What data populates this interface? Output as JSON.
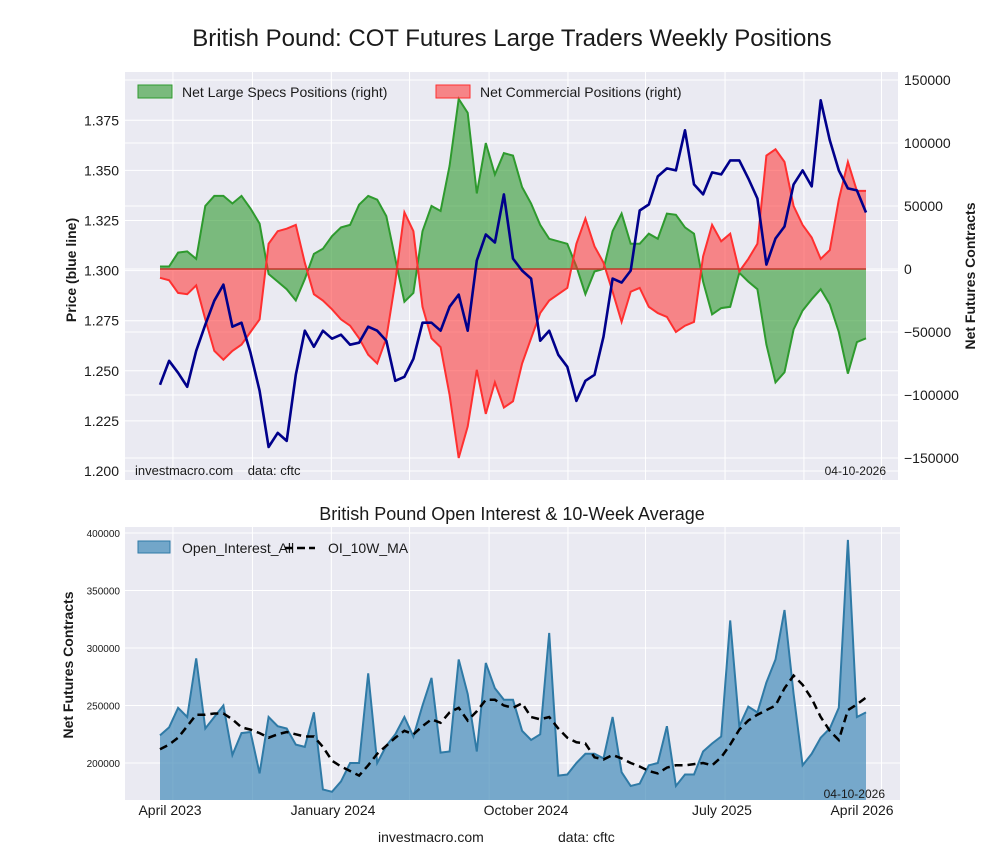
{
  "chart_data": [
    {
      "type": "line",
      "title": "British Pound: COT Futures Large Traders Weekly Positions",
      "ylabel": "Price (blue line)",
      "ylabel_right": "Net Futures Contracts",
      "ylim": [
        1.2,
        1.385
      ],
      "ylim_right": [
        -155000,
        150000
      ],
      "yticks": [
        "1.200",
        "1.225",
        "1.250",
        "1.275",
        "1.300",
        "1.325",
        "1.350",
        "1.375"
      ],
      "yticks_right": [
        "150000",
        "100000",
        "50000",
        "0",
        "−50000",
        "−100000",
        "−150000"
      ],
      "grid": true,
      "legend_placement": "top-left",
      "watermark": "investmacro.com    data: cftc",
      "date_stamp": "04-10-2026",
      "x": [
        "2023-04-11",
        "2023-04-25",
        "2023-05-09",
        "2023-05-23",
        "2023-06-06",
        "2023-06-20",
        "2023-07-04",
        "2023-07-18",
        "2023-08-01",
        "2023-08-15",
        "2023-08-29",
        "2023-09-12",
        "2023-09-26",
        "2023-10-10",
        "2023-10-24",
        "2023-11-07",
        "2023-11-21",
        "2023-12-05",
        "2023-12-19",
        "2024-01-02",
        "2024-01-16",
        "2024-01-30",
        "2024-02-13",
        "2024-02-27",
        "2024-03-12",
        "2024-03-26",
        "2024-04-09",
        "2024-04-23",
        "2024-05-07",
        "2024-05-21",
        "2024-06-04",
        "2024-06-18",
        "2024-07-02",
        "2024-07-16",
        "2024-07-30",
        "2024-08-13",
        "2024-08-27",
        "2024-09-10",
        "2024-09-24",
        "2024-10-08",
        "2024-10-22",
        "2024-11-05",
        "2024-11-19",
        "2024-12-03",
        "2024-12-17",
        "2024-12-31",
        "2025-01-14",
        "2025-01-28",
        "2025-02-11",
        "2025-02-25",
        "2025-03-11",
        "2025-03-25",
        "2025-04-08",
        "2025-04-22",
        "2025-05-06",
        "2025-05-20",
        "2025-06-03",
        "2025-06-17",
        "2025-07-01",
        "2025-07-15",
        "2025-07-29",
        "2025-08-12",
        "2025-08-26",
        "2025-09-09",
        "2025-09-23",
        "2025-10-07",
        "2025-10-21",
        "2025-11-04",
        "2025-11-18",
        "2025-12-02",
        "2025-12-16",
        "2025-12-30",
        "2026-01-13",
        "2026-01-27",
        "2026-02-10",
        "2026-02-24",
        "2026-03-10",
        "2026-03-24",
        "2026-04-07"
      ],
      "series": [
        {
          "name": "Net Large Specs Positions (right)",
          "axis": "right",
          "style": "area",
          "color": "#2e9a2e",
          "values": [
            2000,
            2000,
            13000,
            14000,
            8000,
            50000,
            58000,
            58000,
            52000,
            58000,
            48000,
            36000,
            -4000,
            -10000,
            -16000,
            -25000,
            -8000,
            12000,
            16000,
            26000,
            33000,
            35000,
            51000,
            58000,
            55000,
            42000,
            8000,
            -26000,
            -19000,
            30000,
            50000,
            46000,
            82000,
            135000,
            124000,
            60000,
            100000,
            75000,
            92000,
            90000,
            65000,
            52000,
            35000,
            24000,
            22000,
            20000,
            2000,
            -20000,
            -2000,
            0,
            30000,
            44000,
            20000,
            20000,
            28000,
            24000,
            44000,
            43000,
            33000,
            28000,
            -10000,
            -36000,
            -31000,
            -30000,
            -3000,
            -10000,
            -16000,
            -60000,
            -90000,
            -82000,
            -48000,
            -33000,
            -24000,
            -16000,
            -28000,
            -50000,
            -83000,
            -58000,
            -55000
          ]
        },
        {
          "name": "Net Commercial Positions (right)",
          "axis": "right",
          "style": "area",
          "color": "#ff3030",
          "values": [
            -7000,
            -9000,
            -19000,
            -20000,
            -13000,
            -40000,
            -65000,
            -72000,
            -65000,
            -60000,
            -50000,
            -40000,
            20000,
            30000,
            32000,
            35000,
            5000,
            -20000,
            -25000,
            -32000,
            -40000,
            -45000,
            -55000,
            -68000,
            -75000,
            -55000,
            -10000,
            45000,
            30000,
            -30000,
            -55000,
            -62000,
            -100000,
            -150000,
            -125000,
            -80000,
            -115000,
            -90000,
            -110000,
            -105000,
            -75000,
            -55000,
            -35000,
            -25000,
            -20000,
            -15000,
            20000,
            40000,
            18000,
            5000,
            -18000,
            -42000,
            -18000,
            -15000,
            -30000,
            -35000,
            -38000,
            -50000,
            -45000,
            -42000,
            10000,
            35000,
            22000,
            28000,
            -2000,
            8000,
            20000,
            90000,
            95000,
            85000,
            50000,
            35000,
            25000,
            8000,
            15000,
            55000,
            85000,
            62000,
            62000
          ]
        },
        {
          "axis": "left",
          "style": "line",
          "color": "#00008b",
          "values": [
            1.243,
            1.255,
            1.249,
            1.242,
            1.26,
            1.273,
            1.285,
            1.293,
            1.272,
            1.274,
            1.259,
            1.24,
            1.212,
            1.219,
            1.215,
            1.248,
            1.27,
            1.262,
            1.27,
            1.266,
            1.268,
            1.263,
            1.264,
            1.272,
            1.27,
            1.265,
            1.245,
            1.247,
            1.256,
            1.274,
            1.274,
            1.27,
            1.282,
            1.288,
            1.27,
            1.305,
            1.318,
            1.314,
            1.338,
            1.306,
            1.3,
            1.296,
            1.265,
            1.27,
            1.258,
            1.252,
            1.235,
            1.245,
            1.248,
            1.267,
            1.296,
            1.294,
            1.3,
            1.33,
            1.333,
            1.347,
            1.351,
            1.35,
            1.37,
            1.343,
            1.338,
            1.349,
            1.348,
            1.355,
            1.355,
            1.346,
            1.336,
            1.303,
            1.316,
            1.322,
            1.343,
            1.35,
            1.342,
            1.385,
            1.365,
            1.35,
            1.341,
            1.34,
            1.329
          ]
        }
      ]
    },
    {
      "type": "area",
      "title": "British Pound Open Interest & 10-Week Average",
      "ylabel": "Net Futures Contracts",
      "ylim": [
        168000,
        405000
      ],
      "yticks": [
        "200000",
        "250000",
        "300000",
        "350000",
        "400000"
      ],
      "xticks": [
        "April 2023",
        "January 2024",
        "October 2024",
        "July 2025",
        "April 2026"
      ],
      "grid": true,
      "legend_placement": "top-left",
      "date_stamp": "04-10-2026",
      "series": [
        {
          "name": "Open_Interest_All",
          "style": "area",
          "color": "#4a8fbb",
          "values": [
            224000,
            231000,
            248000,
            240000,
            291000,
            230000,
            240000,
            250000,
            207000,
            226000,
            227000,
            191000,
            240000,
            232000,
            230000,
            216000,
            214000,
            244000,
            177000,
            175000,
            184000,
            200000,
            200000,
            278000,
            200000,
            215000,
            225000,
            240000,
            223000,
            250000,
            274000,
            209000,
            210000,
            290000,
            260000,
            210000,
            287000,
            265000,
            255000,
            255000,
            228000,
            220000,
            225000,
            313000,
            189000,
            190000,
            200000,
            208000,
            208000,
            204000,
            240000,
            192000,
            180000,
            182000,
            198000,
            200000,
            232000,
            180000,
            190000,
            190000,
            210000,
            217000,
            223000,
            324000,
            232000,
            249000,
            244000,
            270000,
            290000,
            333000,
            260000,
            198000,
            208000,
            222000,
            230000,
            248000,
            394000,
            240000,
            244000
          ]
        },
        {
          "name": "OI_10W_MA",
          "style": "dashed-line",
          "color": "#000000",
          "values": [
            212000,
            216000,
            222000,
            232000,
            242000,
            242000,
            243000,
            243000,
            238000,
            231000,
            229000,
            226000,
            222000,
            225000,
            227000,
            225000,
            223000,
            223000,
            214000,
            202000,
            197000,
            193000,
            189000,
            198000,
            208000,
            215000,
            222000,
            228000,
            225000,
            232000,
            238000,
            235000,
            244000,
            248000,
            237000,
            245000,
            255000,
            255000,
            250000,
            248000,
            252000,
            240000,
            238000,
            240000,
            230000,
            222000,
            218000,
            217000,
            205000,
            203000,
            207000,
            204000,
            200000,
            197000,
            193000,
            191000,
            196000,
            198000,
            198000,
            199000,
            200000,
            198000,
            205000,
            216000,
            229000,
            237000,
            242000,
            246000,
            250000,
            265000,
            276000,
            268000,
            256000,
            240000,
            228000,
            220000,
            246000,
            251000,
            257000
          ]
        }
      ]
    }
  ],
  "footer": {
    "site": "investmacro.com",
    "source": "data: cftc"
  }
}
